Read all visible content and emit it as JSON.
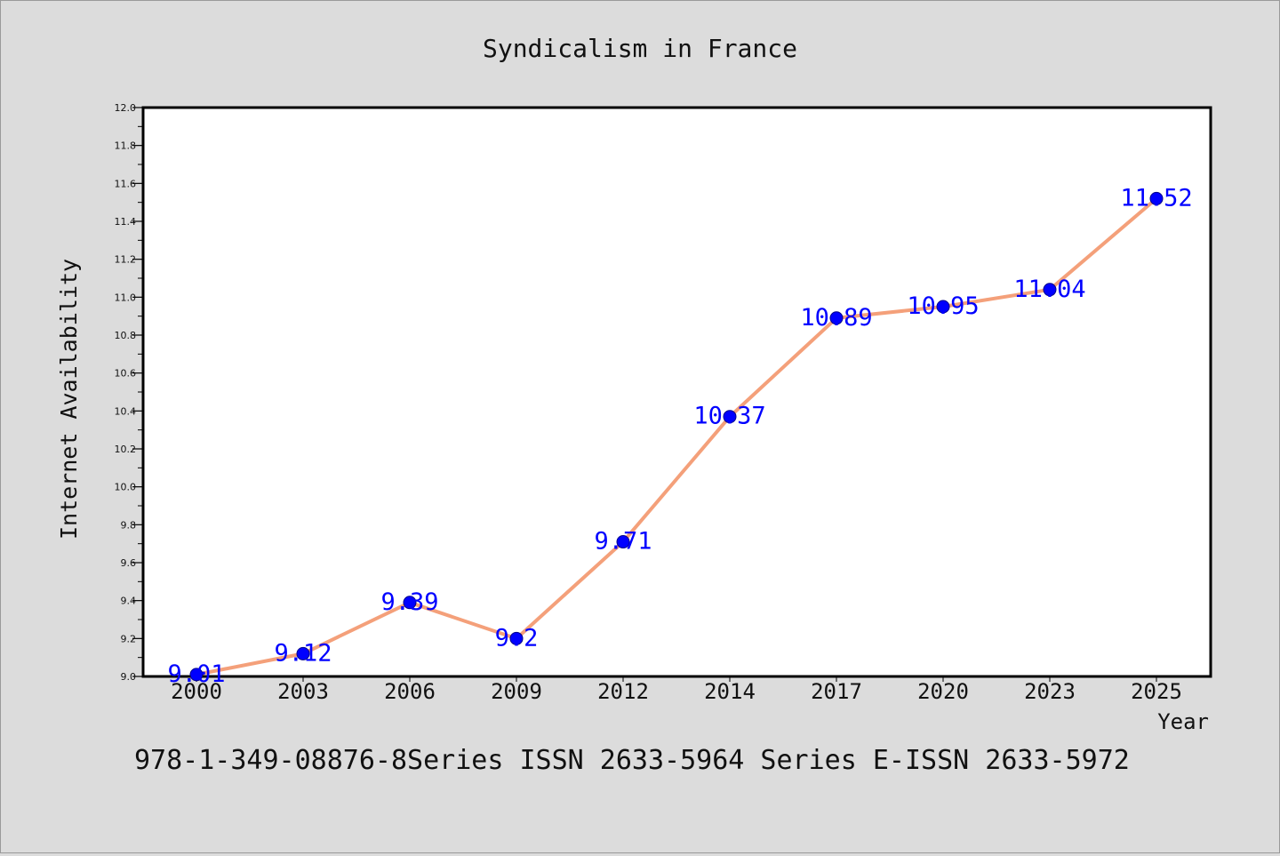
{
  "chart_data": {
    "type": "line",
    "title": "Syndicalism in France",
    "xlabel": "Year",
    "ylabel": "Internet Availability",
    "categories": [
      "2000",
      "2003",
      "2006",
      "2009",
      "2012",
      "2014",
      "2017",
      "2020",
      "2023",
      "2025"
    ],
    "series": [
      {
        "values": [
          9.01,
          9.12,
          9.39,
          9.2,
          9.71,
          10.37,
          10.89,
          10.95,
          11.04,
          11.52
        ],
        "labels": [
          "9.01",
          "9.12",
          "9.39",
          "9.2",
          "9.71",
          "10.37",
          "10.89",
          "10.95",
          "11.04",
          "11.52"
        ]
      }
    ],
    "ylim": [
      9.0,
      12.0
    ],
    "yticks": [
      "9.0",
      "9.2",
      "9.4",
      "9.6",
      "9.8",
      "10.0",
      "10.2",
      "10.4",
      "10.6",
      "10.8",
      "11.0",
      "11.2",
      "11.4",
      "11.6",
      "11.8",
      "12.0"
    ],
    "grid": false,
    "legend": "none",
    "footnote": "978-1-349-08876-8Series ISSN 2633-5964 Series E-ISSN 2633-5972",
    "colors": {
      "line": "#f4a07a",
      "marker": "#0000ff",
      "marker_edge": "#00008b",
      "data_label": "#0000ff",
      "background": "#dcdcdc",
      "plot_background": "#ffffff"
    }
  }
}
